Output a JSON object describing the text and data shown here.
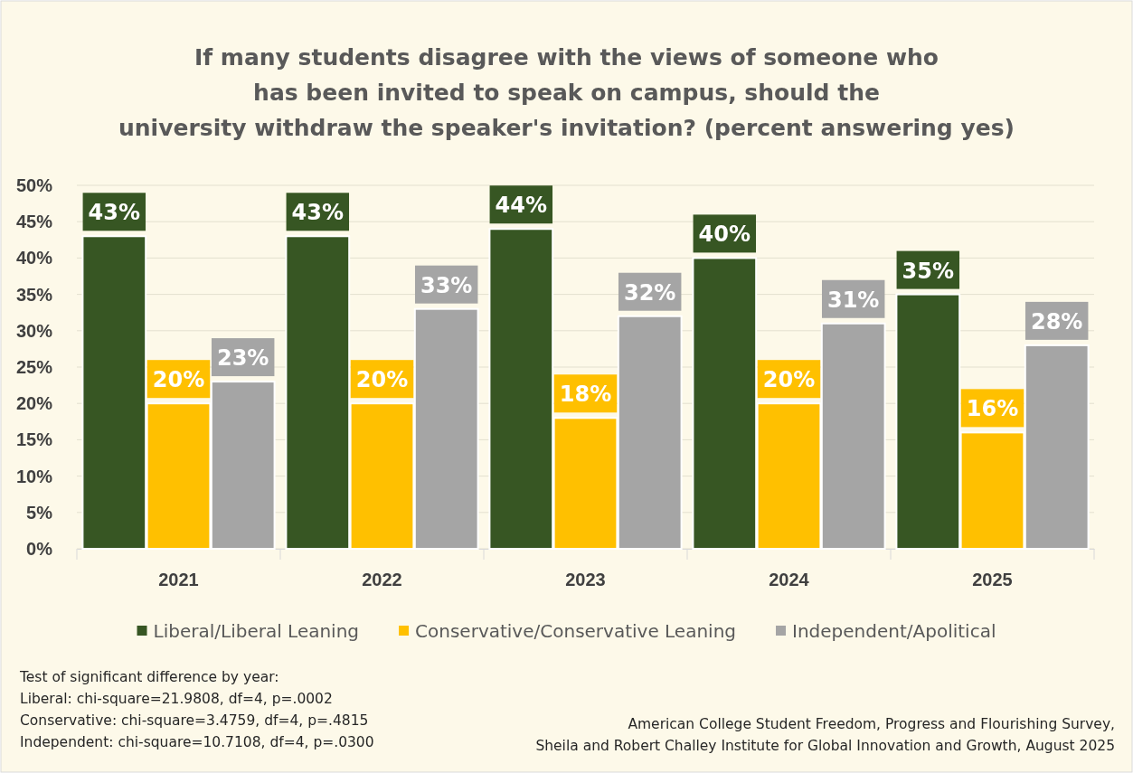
{
  "chart_data": {
    "type": "bar",
    "title": "If many students disagree with the views of someone who\nhas been invited to speak on campus, should the\nuniversity withdraw the speaker's invitation? (percent answering yes)",
    "categories": [
      "2021",
      "2022",
      "2023",
      "2024",
      "2025"
    ],
    "series": [
      {
        "name": "Liberal/Liberal Leaning",
        "color": "#375623",
        "values": [
          43,
          43,
          44,
          40,
          35
        ],
        "value_labels": [
          "43%",
          "43%",
          "44%",
          "40%",
          "35%"
        ]
      },
      {
        "name": "Conservative/Conservative Leaning",
        "color": "#ffc000",
        "values": [
          20,
          20,
          18,
          20,
          16
        ],
        "value_labels": [
          "20%",
          "20%",
          "18%",
          "20%",
          "16%"
        ]
      },
      {
        "name": "Independent/Apolitical",
        "color": "#a5a5a5",
        "values": [
          23,
          33,
          32,
          31,
          28
        ],
        "value_labels": [
          "23%",
          "33%",
          "32%",
          "31%",
          "28%"
        ]
      }
    ],
    "ylim": [
      0,
      50
    ],
    "yticks": [
      {
        "value": 0,
        "label": "0%"
      },
      {
        "value": 5,
        "label": "5%"
      },
      {
        "value": 10,
        "label": "10%"
      },
      {
        "value": 15,
        "label": "15%"
      },
      {
        "value": 20,
        "label": "20%"
      },
      {
        "value": 25,
        "label": "25%"
      },
      {
        "value": 30,
        "label": "30%"
      },
      {
        "value": 35,
        "label": "35%"
      },
      {
        "value": 40,
        "label": "40%"
      },
      {
        "value": 45,
        "label": "45%"
      },
      {
        "value": 50,
        "label": "50%"
      }
    ],
    "grid": "y",
    "legend": "bottom",
    "annotations": [
      "Test of significant difference by year:\nLiberal: chi-square=21.9808, df=4, p=.0002\nConservative: chi-square=3.4759, df=4, p=.4815\nIndependent: chi-square=10.7108, df=4, p=.0300",
      "American College Student Freedom, Progress and Flourishing Survey,\nSheila and Robert Challey Institute for Global Innovation and Growth, August 2025"
    ]
  }
}
